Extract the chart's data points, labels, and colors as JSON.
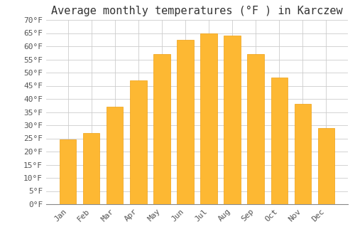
{
  "title": "Average monthly temperatures (°F ) in Karczew",
  "months": [
    "Jan",
    "Feb",
    "Mar",
    "Apr",
    "May",
    "Jun",
    "Jul",
    "Aug",
    "Sep",
    "Oct",
    "Nov",
    "Dec"
  ],
  "values": [
    24.5,
    27.0,
    37.0,
    47.0,
    57.0,
    62.5,
    65.0,
    64.0,
    57.0,
    48.0,
    38.0,
    29.0
  ],
  "bar_color": "#FDB833",
  "bar_edge_color": "#F0A010",
  "background_color": "#FFFFFF",
  "grid_color": "#CCCCCC",
  "ylim": [
    0,
    70
  ],
  "ytick_step": 5,
  "title_fontsize": 11,
  "tick_fontsize": 8,
  "font_family": "monospace"
}
